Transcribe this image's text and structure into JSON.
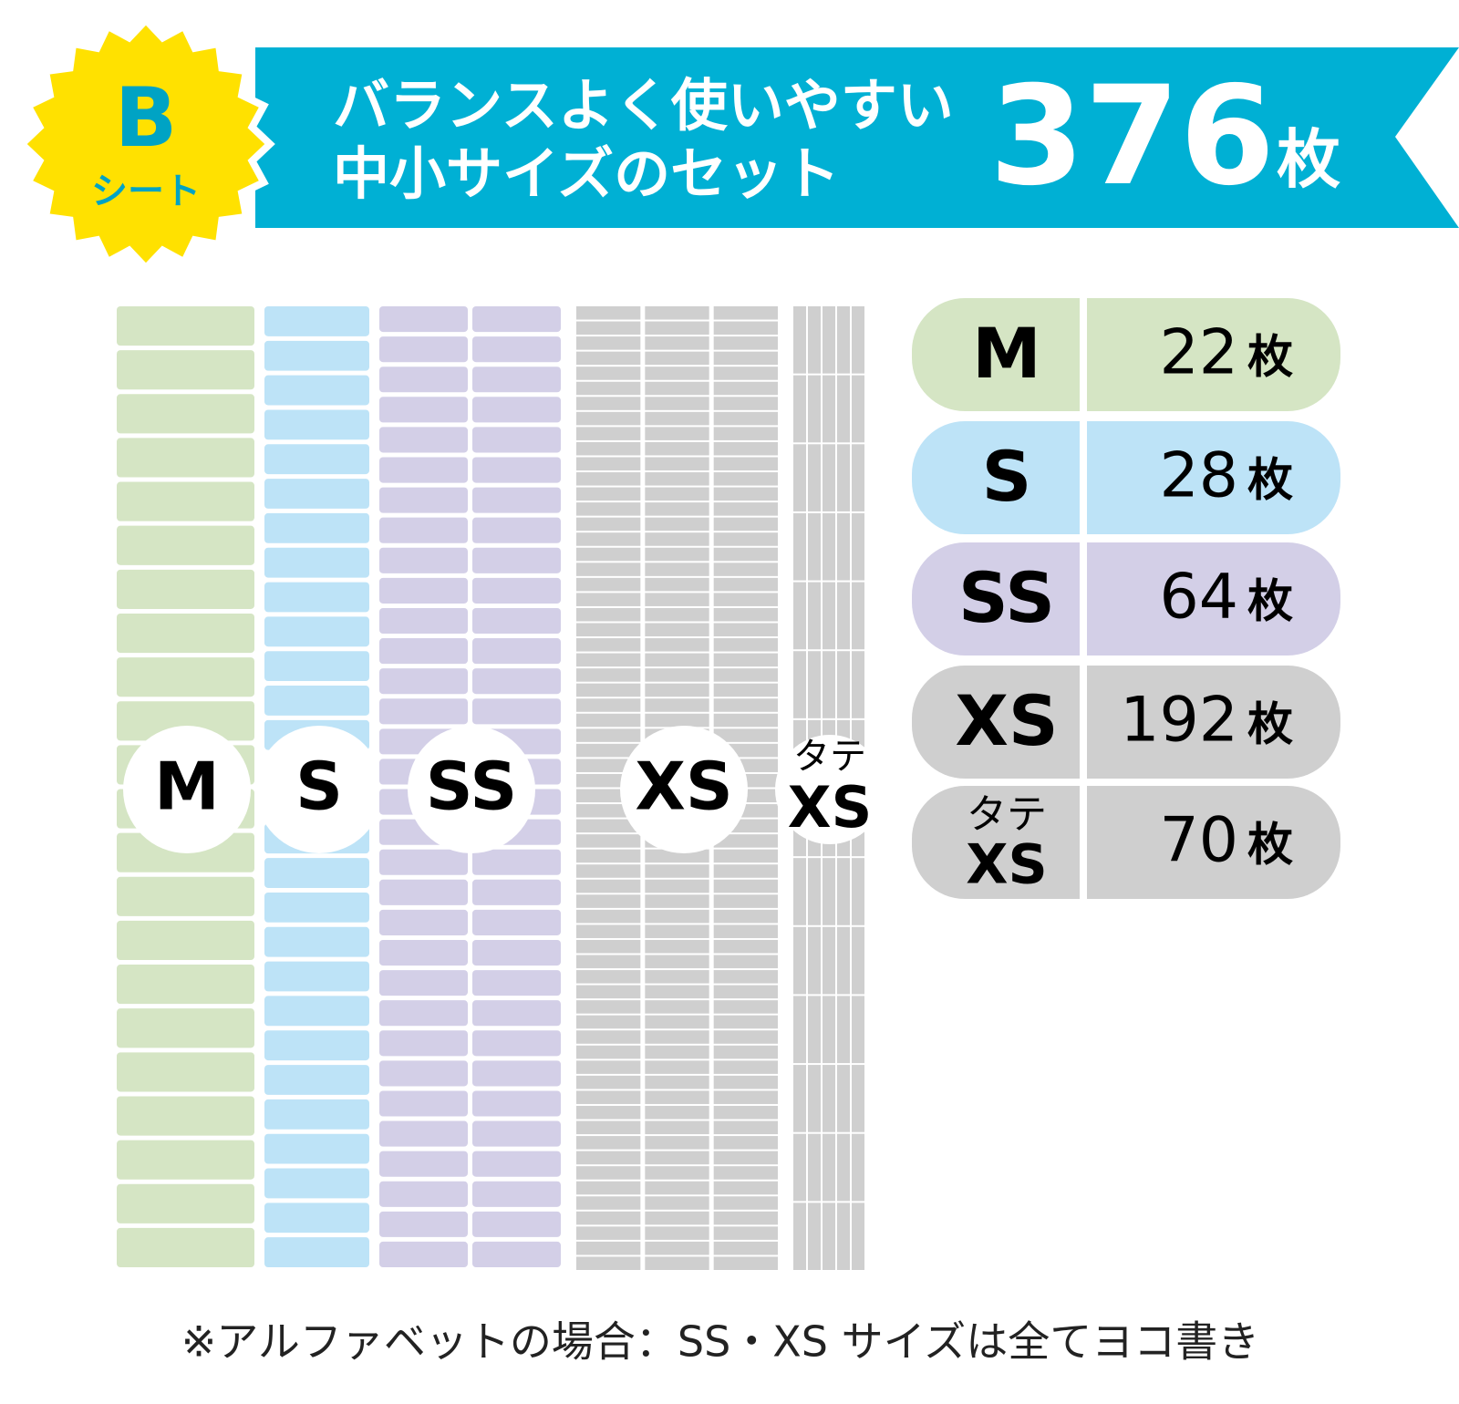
{
  "badge": {
    "letter": "B",
    "label": "シート"
  },
  "header": {
    "lines": [
      "バランスよく使いやすい",
      "中小サイズのセット"
    ],
    "total": 376,
    "unit": "枚"
  },
  "sizes": [
    {
      "label": "M",
      "count": 22,
      "color": "#d5e5c4"
    },
    {
      "label": "S",
      "count": 28,
      "color": "#bde3f7"
    },
    {
      "label": "SS",
      "count": 64,
      "color": "#d3cfe7"
    },
    {
      "label": "XS",
      "count": 192,
      "color": "#cfcfcf"
    },
    {
      "label_top": "タテ",
      "label": "XS",
      "count": 70,
      "color": "#cfcfcf"
    }
  ],
  "footnote": "※アルファベットの場合：SS・XS サイズは全てヨコ書き"
}
